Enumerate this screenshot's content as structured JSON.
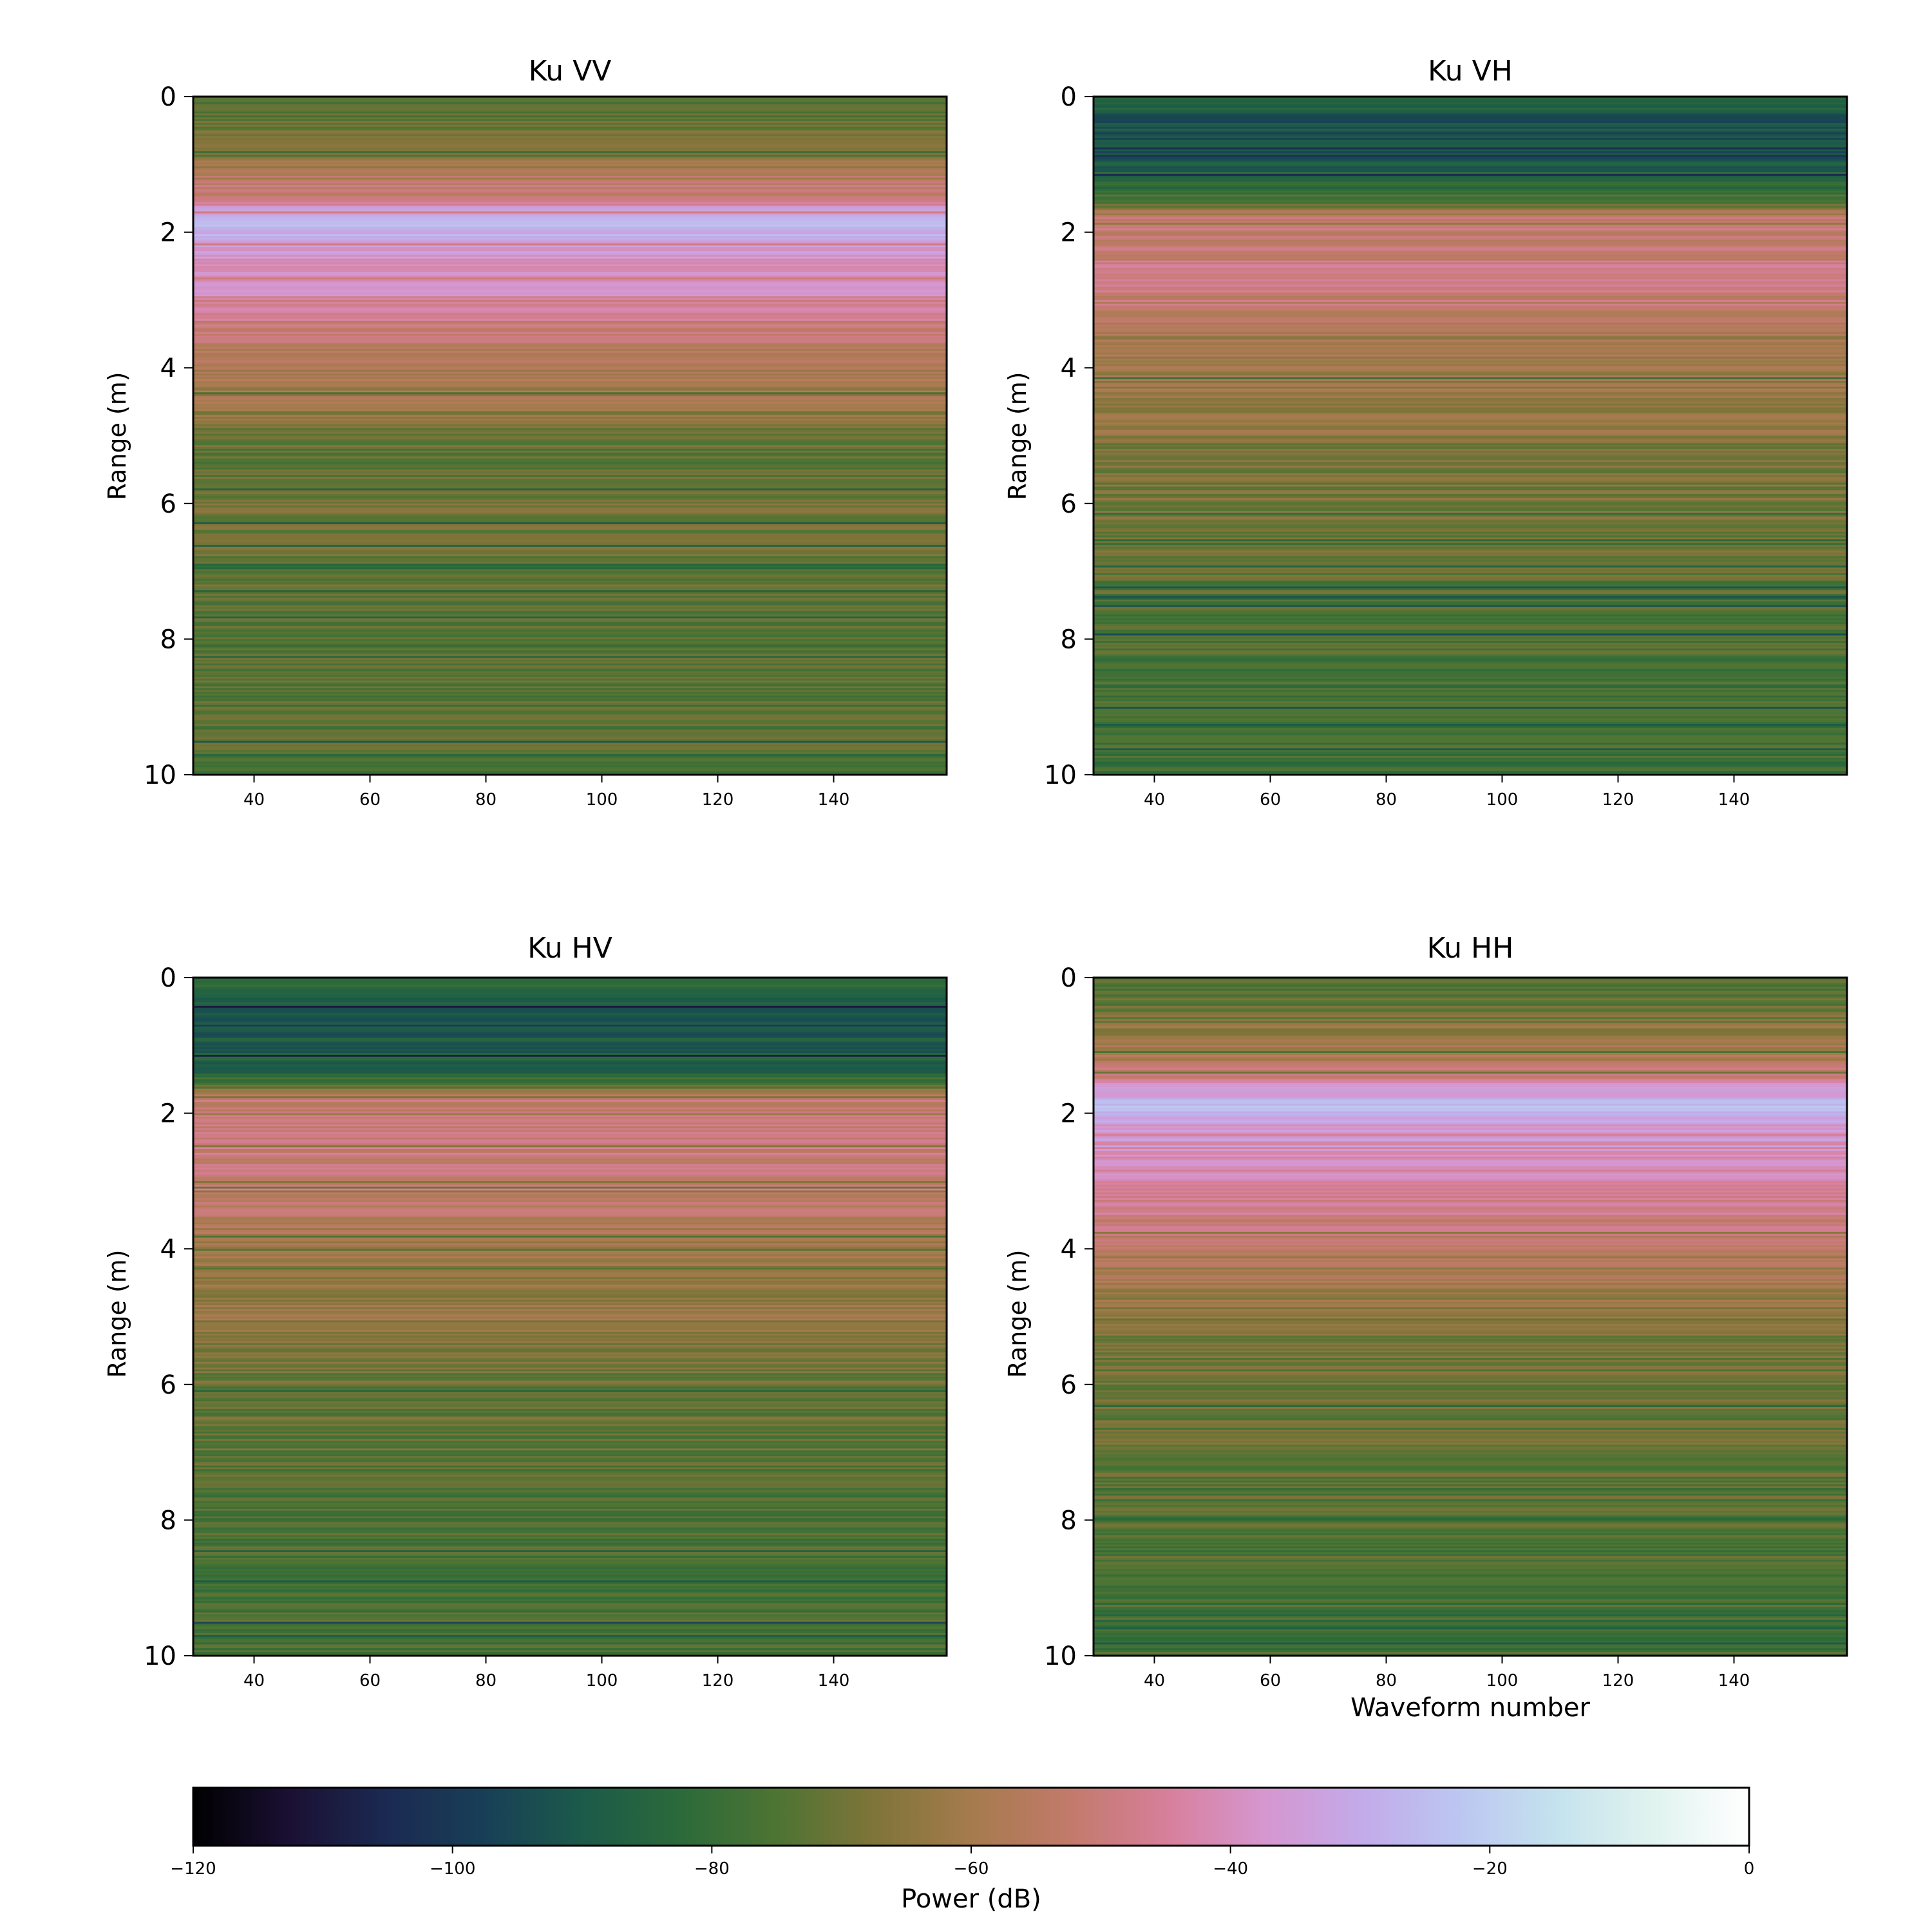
{
  "chart_data": [
    {
      "type": "heatmap",
      "title": "Ku VV",
      "xlabel": "",
      "ylabel": "Range (m)",
      "xlim": [
        29.5,
        159.5
      ],
      "ylim": [
        10,
        0
      ],
      "xticks": [
        40,
        60,
        80,
        100,
        120,
        140
      ],
      "xtick_labels": [
        "40",
        "60",
        "80",
        "100",
        "120",
        "140"
      ],
      "yticks": [
        0,
        2,
        4,
        6,
        8,
        10
      ],
      "ytick_labels": [
        "0",
        "2",
        "4",
        "6",
        "8",
        "10"
      ],
      "range_profile_db": {
        "range_m": [
          0,
          0.3,
          0.7,
          1.0,
          1.5,
          1.7,
          1.9,
          2.1,
          2.5,
          2.8,
          3.3,
          4.0,
          4.6,
          5.0,
          5.5,
          6.0,
          7.0,
          8.0,
          9.0,
          10.0
        ],
        "power_db": [
          -75,
          -73,
          -68,
          -60,
          -48,
          -33,
          -25,
          -32,
          -40,
          -38,
          -48,
          -58,
          -63,
          -70,
          -72,
          -70,
          -71,
          -75,
          -74,
          -74
        ]
      }
    },
    {
      "type": "heatmap",
      "title": "Ku VH",
      "xlabel": "",
      "ylabel": "Range (m)",
      "xlim": [
        29.5,
        159.5
      ],
      "ylim": [
        10,
        0
      ],
      "xticks": [
        40,
        60,
        80,
        100,
        120,
        140
      ],
      "xtick_labels": [
        "40",
        "60",
        "80",
        "100",
        "120",
        "140"
      ],
      "yticks": [
        0,
        2,
        4,
        6,
        8,
        10
      ],
      "ytick_labels": [
        "0",
        "2",
        "4",
        "6",
        "8",
        "10"
      ],
      "range_profile_db": {
        "range_m": [
          0,
          0.3,
          0.6,
          0.9,
          1.3,
          1.6,
          1.8,
          2.2,
          2.8,
          3.3,
          3.6,
          4.2,
          4.8,
          5.2,
          6.0,
          7.0,
          8.0,
          9.0,
          10.0
        ],
        "power_db": [
          -84,
          -90,
          -92,
          -90,
          -84,
          -72,
          -52,
          -50,
          -50,
          -54,
          -60,
          -62,
          -62,
          -70,
          -68,
          -72,
          -76,
          -78,
          -78
        ]
      }
    },
    {
      "type": "heatmap",
      "title": "Ku HV",
      "xlabel": "",
      "ylabel": "Range (m)",
      "xlim": [
        29.5,
        159.5
      ],
      "ylim": [
        10,
        0
      ],
      "xticks": [
        40,
        60,
        80,
        100,
        120,
        140
      ],
      "xtick_labels": [
        "40",
        "60",
        "80",
        "100",
        "120",
        "140"
      ],
      "yticks": [
        0,
        2,
        4,
        6,
        8,
        10
      ],
      "ytick_labels": [
        "0",
        "2",
        "4",
        "6",
        "8",
        "10"
      ],
      "range_profile_db": {
        "range_m": [
          0,
          0.3,
          0.6,
          1.0,
          1.4,
          1.6,
          1.8,
          2.2,
          2.8,
          3.3,
          3.6,
          4.2,
          5.0,
          5.5,
          6.2,
          7.0,
          8.0,
          9.0,
          10.0
        ],
        "power_db": [
          -84,
          -88,
          -92,
          -90,
          -86,
          -72,
          -52,
          -50,
          -50,
          -52,
          -58,
          -62,
          -63,
          -68,
          -72,
          -72,
          -76,
          -76,
          -76
        ]
      }
    },
    {
      "type": "heatmap",
      "title": "Ku HH",
      "xlabel": "Waveform number",
      "ylabel": "Range (m)",
      "xlim": [
        29.5,
        159.5
      ],
      "ylim": [
        10,
        0
      ],
      "xticks": [
        40,
        60,
        80,
        100,
        120,
        140
      ],
      "xtick_labels": [
        "40",
        "60",
        "80",
        "100",
        "120",
        "140"
      ],
      "yticks": [
        0,
        2,
        4,
        6,
        8,
        10
      ],
      "ytick_labels": [
        "0",
        "2",
        "4",
        "6",
        "8",
        "10"
      ],
      "range_profile_db": {
        "range_m": [
          0,
          0.4,
          0.8,
          1.2,
          1.5,
          1.7,
          1.9,
          2.2,
          2.6,
          3.0,
          3.5,
          4.0,
          4.6,
          5.5,
          6.5,
          7.5,
          8.5,
          9.5,
          10.0
        ],
        "power_db": [
          -75,
          -72,
          -64,
          -58,
          -48,
          -33,
          -26,
          -36,
          -40,
          -42,
          -48,
          -57,
          -62,
          -70,
          -71,
          -73,
          -76,
          -77,
          -77
        ]
      }
    }
  ],
  "colorbar": {
    "label": "Power (dB)",
    "range": [
      -120,
      0
    ],
    "ticks": [
      -120,
      -100,
      -80,
      -60,
      -40,
      -20,
      0
    ],
    "tick_labels": [
      "−120",
      "−100",
      "−80",
      "−60",
      "−40",
      "−20",
      "0"
    ],
    "colormap": [
      "#000000",
      "#1b1034",
      "#1b2a52",
      "#183f57",
      "#1c5a4a",
      "#2b6a3a",
      "#4d7433",
      "#7f7439",
      "#a57b4d",
      "#c27a6a",
      "#d77f9a",
      "#d696cf",
      "#c3aae9",
      "#bcc6f1",
      "#c4e2ee",
      "#e0f3ef",
      "#ffffff"
    ]
  }
}
